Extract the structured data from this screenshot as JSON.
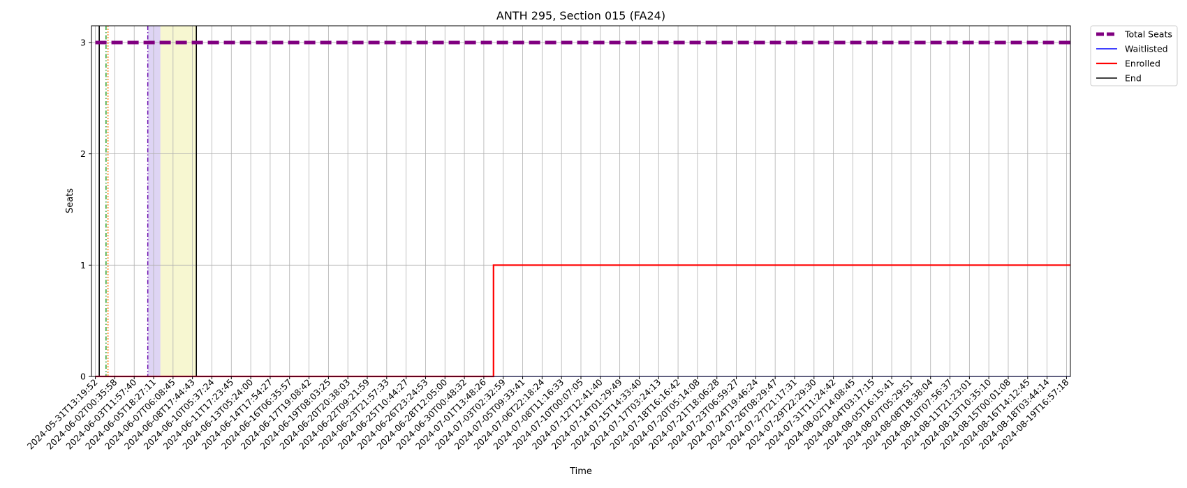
{
  "chart_data": {
    "type": "line",
    "title": "ANTH 295, Section 015 (FA24)",
    "xlabel": "Time",
    "ylabel": "Seats",
    "ylim": [
      0,
      3.15
    ],
    "yticks": [
      0,
      1,
      2,
      3
    ],
    "grid": true,
    "legend_placement": "outside top-right",
    "x_ticks": [
      "2024-05-31T13:19:52",
      "2024-06-02T00:35:58",
      "2024-06-03T11:57:40",
      "2024-06-05T18:27:11",
      "2024-06-07T06:08:45",
      "2024-06-08T17:44:43",
      "2024-06-10T05:37:24",
      "2024-06-11T17:23:45",
      "2024-06-13T05:24:00",
      "2024-06-14T17:54:27",
      "2024-06-16T06:35:57",
      "2024-06-17T19:08:42",
      "2024-06-19T08:03:25",
      "2024-06-20T20:38:03",
      "2024-06-22T09:21:59",
      "2024-06-23T21:57:33",
      "2024-06-25T10:44:27",
      "2024-06-26T23:24:53",
      "2024-06-28T12:05:00",
      "2024-06-30T00:48:32",
      "2024-07-01T13:48:26",
      "2024-07-03T02:32:59",
      "2024-07-05T09:33:41",
      "2024-07-06T22:18:24",
      "2024-07-08T11:16:33",
      "2024-07-10T00:07:05",
      "2024-07-12T12:41:40",
      "2024-07-14T01:29:49",
      "2024-07-15T14:33:40",
      "2024-07-17T03:24:13",
      "2024-07-18T16:16:42",
      "2024-07-20T05:14:08",
      "2024-07-21T18:06:28",
      "2024-07-23T06:59:27",
      "2024-07-24T19:46:24",
      "2024-07-26T08:29:47",
      "2024-07-27T21:17:31",
      "2024-07-29T22:29:30",
      "2024-07-31T11:24:42",
      "2024-08-02T14:08:45",
      "2024-08-04T03:17:15",
      "2024-08-05T16:15:41",
      "2024-08-07T05:29:51",
      "2024-08-08T18:38:04",
      "2024-08-10T07:56:37",
      "2024-08-11T21:23:01",
      "2024-08-13T10:35:10",
      "2024-08-15T00:01:08",
      "2024-08-16T14:12:45",
      "2024-08-18T03:44:14",
      "2024-08-19T16:57:18"
    ],
    "series": [
      {
        "name": "Total Seats",
        "color": "#800080",
        "style": "dashed",
        "kind": "step",
        "points": [
          [
            0,
            3
          ],
          [
            50.2,
            3
          ]
        ]
      },
      {
        "name": "Waitlisted",
        "color": "#0000ff",
        "style": "solid",
        "kind": "step",
        "points": [
          [
            0,
            0
          ],
          [
            50.2,
            0
          ]
        ]
      },
      {
        "name": "Enrolled",
        "color": "#ff0000",
        "style": "solid",
        "kind": "step",
        "points": [
          [
            0,
            0
          ],
          [
            20.5,
            0
          ],
          [
            20.5,
            1
          ],
          [
            50.2,
            1
          ]
        ]
      },
      {
        "name": "End",
        "color": "#000000",
        "style": "solid",
        "kind": "vline",
        "x": [
          0.2,
          5.2
        ]
      }
    ],
    "annotations": [
      {
        "type": "vline",
        "x": 0.55,
        "color": "#2ca02c",
        "style": "dashdot"
      },
      {
        "type": "vline",
        "x": 0.65,
        "color": "#ff7f0e",
        "style": "dotted"
      },
      {
        "type": "vline",
        "x": 2.7,
        "color": "#6a0dad",
        "style": "dashdot"
      },
      {
        "type": "vspan",
        "x": [
          2.7,
          3.35
        ],
        "color": "#9370db",
        "alpha": 0.3
      },
      {
        "type": "vspan",
        "x": [
          3.35,
          5.2
        ],
        "color": "#eeee99",
        "alpha": 0.45
      }
    ]
  }
}
